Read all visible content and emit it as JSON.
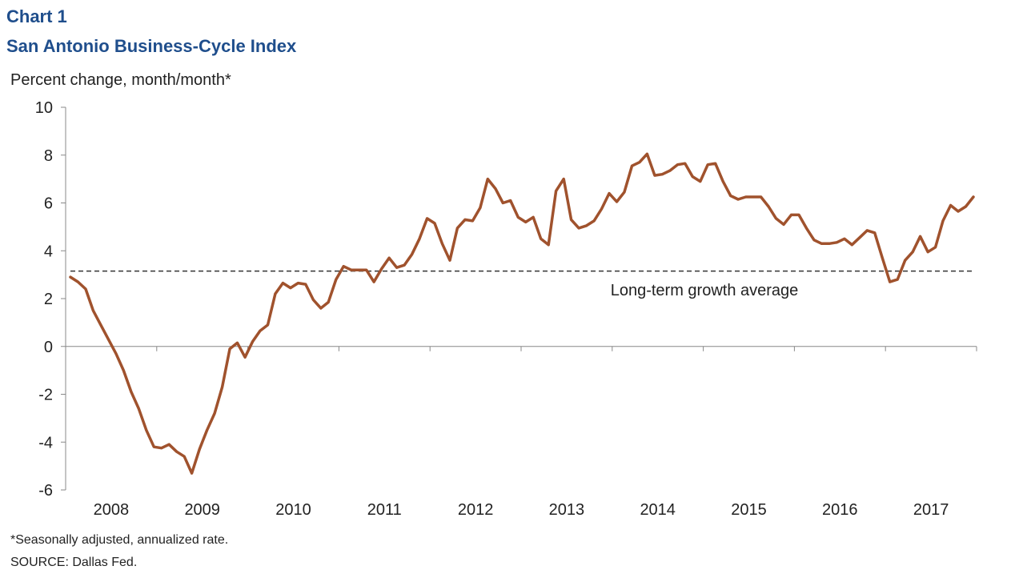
{
  "header": {
    "chart_number": "Chart 1",
    "title": "San Antonio Business-Cycle Index"
  },
  "footnotes": {
    "note": "*Seasonally adjusted, annualized rate.",
    "source": "SOURCE: Dallas Fed."
  },
  "colors": {
    "title": "#1f4e8c",
    "series_line": "#a0522d",
    "average_line": "#333333",
    "axis": "#888888",
    "text": "#222222"
  },
  "chart_data": {
    "type": "line",
    "title": "San Antonio Business-Cycle Index",
    "ylabel": "Percent change, month/month*",
    "xlabel": "",
    "ylim": [
      -6,
      10
    ],
    "yticks": [
      -6,
      -4,
      -2,
      0,
      2,
      4,
      6,
      8,
      10
    ],
    "xlim": [
      2008.0,
      2018.0
    ],
    "year_labels": [
      "2008",
      "2009",
      "2010",
      "2011",
      "2012",
      "2013",
      "2014",
      "2015",
      "2016",
      "2017"
    ],
    "reference_line": {
      "label": "Long-term growth average",
      "value": 3.15
    },
    "series": [
      {
        "name": "San Antonio Business-Cycle Index",
        "x": [
          2008.0,
          2008.083,
          2008.167,
          2008.25,
          2008.333,
          2008.417,
          2008.5,
          2008.583,
          2008.667,
          2008.75,
          2008.833,
          2008.917,
          2009.0,
          2009.083,
          2009.167,
          2009.25,
          2009.333,
          2009.417,
          2009.5,
          2009.583,
          2009.667,
          2009.75,
          2009.833,
          2009.917,
          2010.0,
          2010.083,
          2010.167,
          2010.25,
          2010.333,
          2010.417,
          2010.5,
          2010.583,
          2010.667,
          2010.75,
          2010.833,
          2010.917,
          2011.0,
          2011.083,
          2011.167,
          2011.25,
          2011.333,
          2011.417,
          2011.5,
          2011.583,
          2011.667,
          2011.75,
          2011.833,
          2011.917,
          2012.0,
          2012.083,
          2012.167,
          2012.25,
          2012.333,
          2012.417,
          2012.5,
          2012.583,
          2012.667,
          2012.75,
          2012.833,
          2012.917,
          2013.0,
          2013.083,
          2013.167,
          2013.25,
          2013.333,
          2013.417,
          2013.5,
          2013.583,
          2013.667,
          2013.75,
          2013.833,
          2013.917,
          2014.0,
          2014.083,
          2014.167,
          2014.25,
          2014.333,
          2014.417,
          2014.5,
          2014.583,
          2014.667,
          2014.75,
          2014.833,
          2014.917,
          2015.0,
          2015.083,
          2015.167,
          2015.25,
          2015.333,
          2015.417,
          2015.5,
          2015.583,
          2015.667,
          2015.75,
          2015.833,
          2015.917,
          2016.0,
          2016.083,
          2016.167,
          2016.25,
          2016.333,
          2016.417,
          2016.5,
          2016.583,
          2016.667,
          2016.75,
          2016.833,
          2016.917,
          2017.0,
          2017.083,
          2017.167,
          2017.25,
          2017.333,
          2017.417,
          2017.5,
          2017.583,
          2017.667,
          2017.75,
          2017.833,
          2017.917
        ],
        "values": [
          2.9,
          2.7,
          2.4,
          1.5,
          0.9,
          0.3,
          -0.3,
          -1.0,
          -1.9,
          -2.6,
          -3.5,
          -4.2,
          -4.25,
          -4.1,
          -4.4,
          -4.6,
          -5.3,
          -4.3,
          -3.5,
          -2.8,
          -1.7,
          -0.1,
          0.15,
          -0.45,
          0.2,
          0.65,
          0.9,
          2.2,
          2.65,
          2.45,
          2.65,
          2.6,
          1.95,
          1.6,
          1.85,
          2.8,
          3.35,
          3.2,
          3.2,
          3.2,
          2.7,
          3.25,
          3.7,
          3.3,
          3.4,
          3.85,
          4.5,
          5.35,
          5.15,
          4.3,
          3.6,
          4.95,
          5.3,
          5.25,
          5.8,
          7.0,
          6.6,
          6.0,
          6.1,
          5.4,
          5.2,
          5.4,
          4.5,
          4.25,
          6.5,
          7.0,
          5.3,
          4.95,
          5.05,
          5.25,
          5.75,
          6.4,
          6.05,
          6.45,
          7.55,
          7.7,
          8.05,
          7.15,
          7.2,
          7.35,
          7.6,
          7.65,
          7.1,
          6.9,
          7.6,
          7.65,
          6.9,
          6.3,
          6.15,
          6.25,
          6.25,
          6.25,
          5.85,
          5.35,
          5.1,
          5.5,
          5.5,
          4.95,
          4.45,
          4.3,
          4.3,
          4.35,
          4.5,
          4.25,
          4.55,
          4.85,
          4.75,
          3.7,
          2.7,
          2.8,
          3.6,
          3.95,
          4.6,
          3.95,
          4.15,
          5.25,
          5.9,
          5.65,
          5.85,
          6.25
        ]
      }
    ]
  }
}
